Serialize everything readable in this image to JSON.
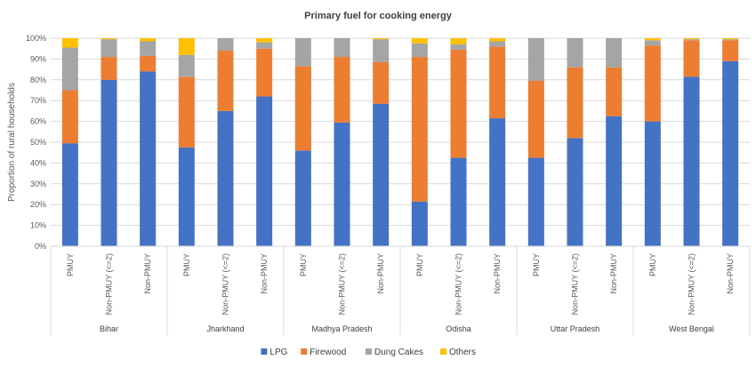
{
  "chart_data": {
    "type": "bar",
    "stacked": true,
    "title": "Primary fuel for cooking energy",
    "ylabel": "Proportion of rural households",
    "xlabel": "",
    "ylim": [
      0,
      100
    ],
    "yticks": [
      "0%",
      "10%",
      "20%",
      "30%",
      "40%",
      "50%",
      "60%",
      "70%",
      "80%",
      "90%",
      "100%"
    ],
    "groups": [
      "Bihar",
      "Jharkhand",
      "Madhya Pradesh",
      "Odisha",
      "Uttar Pradesh",
      "West Bengal"
    ],
    "subcategories": [
      "PMUY",
      "Non-PMUY (<=2)",
      "Non-PMUY"
    ],
    "categories": [
      "Bihar PMUY",
      "Bihar Non-PMUY (<=2)",
      "Bihar Non-PMUY",
      "Jharkhand PMUY",
      "Jharkhand Non-PMUY (<=2)",
      "Jharkhand Non-PMUY",
      "Madhya Pradesh PMUY",
      "Madhya Pradesh Non-PMUY (<=2)",
      "Madhya Pradesh Non-PMUY",
      "Odisha PMUY",
      "Odisha Non-PMUY (<=2)",
      "Odisha Non-PMUY",
      "Uttar Pradesh PMUY",
      "Uttar Pradesh Non-PMUY (<=2)",
      "Uttar Pradesh Non-PMUY",
      "West Bengal PMUY",
      "West Bengal Non-PMUY (<=2)",
      "West Bengal Non-PMUY"
    ],
    "series": [
      {
        "name": "LPG",
        "color": "#4472C4",
        "values": [
          49.5,
          80,
          84,
          47.5,
          65,
          72,
          46,
          59.5,
          68.5,
          21.5,
          42.5,
          61.5,
          42.5,
          52,
          62.5,
          60,
          81.5,
          89
        ]
      },
      {
        "name": "Firewood",
        "color": "#ED7D31",
        "values": [
          25.5,
          11,
          7.5,
          34,
          29,
          23,
          40.5,
          31.5,
          20,
          69.5,
          52,
          34.5,
          37,
          34,
          23.5,
          36.5,
          17.5,
          10
        ]
      },
      {
        "name": "Dung Cakes",
        "color": "#A5A5A5",
        "values": [
          20.5,
          8.5,
          7,
          10.5,
          6,
          3,
          13.5,
          9,
          11,
          6.5,
          2.5,
          2.5,
          20.5,
          14,
          14,
          2.5,
          0.5,
          0.5
        ]
      },
      {
        "name": "Others",
        "color": "#FFC000",
        "values": [
          4.5,
          0.5,
          1.5,
          8,
          0,
          2,
          0,
          0,
          0.5,
          2.5,
          3,
          1.5,
          0,
          0,
          0,
          1,
          0.5,
          0.5
        ]
      }
    ],
    "grid": true,
    "legend_position": "bottom"
  }
}
